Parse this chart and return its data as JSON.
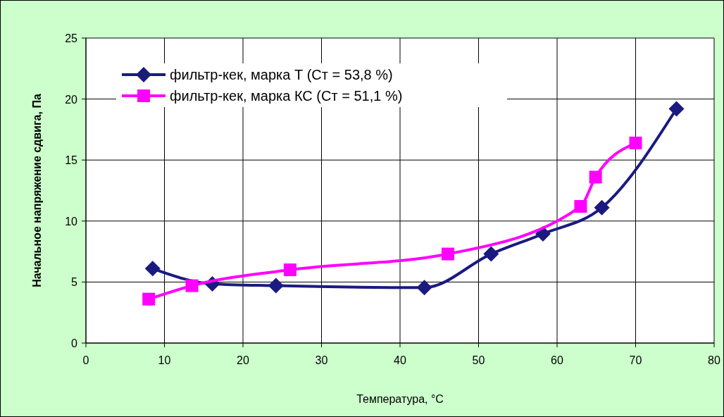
{
  "chart_data": {
    "type": "line",
    "xlabel": "Температура, °C",
    "ylabel": "Начальное напряжение сдвига, Па",
    "xlim": [
      0,
      80
    ],
    "xticks": [
      0,
      10,
      20,
      30,
      40,
      50,
      60,
      70,
      80
    ],
    "ylim": [
      0,
      25
    ],
    "yticks": [
      0,
      5,
      10,
      15,
      20,
      25
    ],
    "grid": true,
    "legend": "top left",
    "line_style": "solid",
    "series": [
      {
        "name": "фильтр-кек, марка Т (Ст = 53,8 %)",
        "color": "#1a1a80",
        "marker": "diamond",
        "x": [
          8.5,
          16.1,
          24.2,
          43.1,
          51.6,
          58.2,
          65.7,
          75.2
        ],
        "values": [
          6.1,
          4.85,
          4.7,
          4.55,
          7.3,
          8.95,
          11.1,
          19.2
        ]
      },
      {
        "name": "фильтр-кек, марка КС (Ст = 51,1 %)",
        "color": "#ff00ff",
        "marker": "square",
        "x": [
          8.0,
          13.5,
          26.0,
          46.1,
          63.0,
          64.9,
          70.0
        ],
        "values": [
          3.6,
          4.7,
          6.0,
          7.3,
          11.2,
          13.6,
          16.4
        ]
      }
    ]
  }
}
